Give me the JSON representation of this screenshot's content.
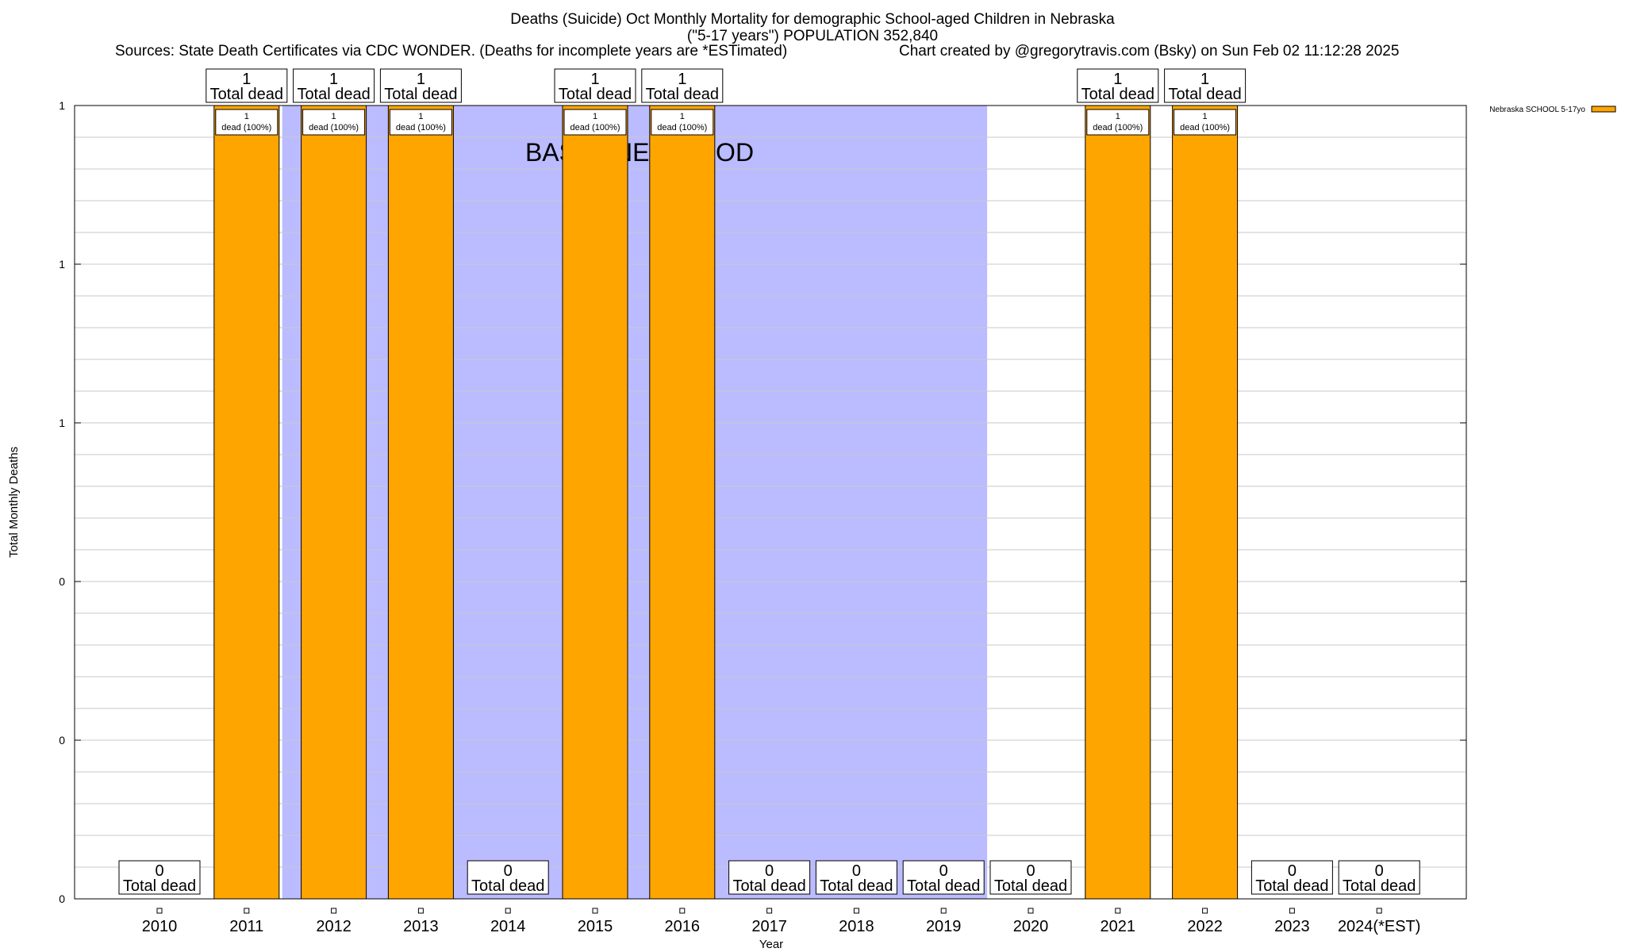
{
  "title_line1": "Deaths (Suicide) Oct Monthly Mortality for demographic School-aged Children in Nebraska",
  "title_line2": "(\"5-17 years\") POPULATION 352,840",
  "sources": "Sources: State Death Certificates via CDC WONDER. (Deaths for incomplete years are *ESTimated)",
  "credit": "Chart created by @gregorytravis.com (Bsky) on Sun Feb 02 11:12:28 2025",
  "colors": {
    "bar": "#FFA500",
    "baseline_shade": "#BBBBFF",
    "grid": "#C8C8C8"
  },
  "chart_data": {
    "type": "bar",
    "xlabel": "Year",
    "ylabel": "Total Monthly Deaths",
    "ylim": [
      0,
      1
    ],
    "y_tick_labels": [
      "0",
      "0",
      "0",
      "1",
      "1",
      "1"
    ],
    "categories": [
      "2010",
      "2011",
      "2012",
      "2013",
      "2014",
      "2015",
      "2016",
      "2017",
      "2018",
      "2019",
      "2020",
      "2021",
      "2022",
      "2023",
      "2024(*EST)"
    ],
    "series": [
      {
        "name": "Nebraska SCHOOL 5-17yo",
        "values": [
          0,
          1,
          1,
          1,
          0,
          1,
          1,
          0,
          0,
          0,
          0,
          1,
          1,
          0,
          0
        ]
      }
    ],
    "total_labels": [
      "0",
      "1",
      "1",
      "1",
      "0",
      "1",
      "1",
      "0",
      "0",
      "0",
      "0",
      "1",
      "1",
      "0",
      "0"
    ],
    "total_suffix": "Total dead",
    "bar_label_suffix": "dead (100%)",
    "baseline": {
      "label": "BASELINE PERIOD",
      "start_year": 2012,
      "end_year": 2019
    },
    "grid": true,
    "legend_position": "outside top-right"
  }
}
